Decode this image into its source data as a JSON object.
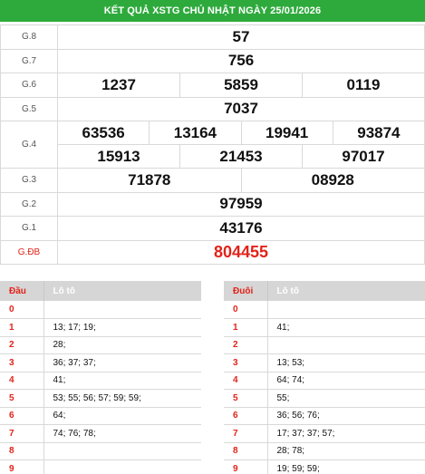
{
  "header": {
    "title": "KẾT QUẢ XSTG CHỦ NHẬT NGÀY 25/01/2026"
  },
  "prizes": {
    "g8": {
      "label": "G.8",
      "values": [
        "57"
      ]
    },
    "g7": {
      "label": "G.7",
      "values": [
        "756"
      ]
    },
    "g6": {
      "label": "G.6",
      "values": [
        "1237",
        "5859",
        "0119"
      ]
    },
    "g5": {
      "label": "G.5",
      "values": [
        "7037"
      ]
    },
    "g4": {
      "label": "G.4",
      "values": [
        "63536",
        "13164",
        "19941",
        "93874",
        "15913",
        "21453",
        "97017"
      ]
    },
    "g3": {
      "label": "G.3",
      "values": [
        "71878",
        "08928"
      ]
    },
    "g2": {
      "label": "G.2",
      "values": [
        "97959"
      ]
    },
    "g1": {
      "label": "G.1",
      "values": [
        "43176"
      ]
    },
    "gdb": {
      "label": "G.ĐB",
      "values": [
        "804455"
      ]
    }
  },
  "dau": {
    "col_head": "Đầu",
    "col_loto": "Lô tô",
    "rows": [
      {
        "n": "0",
        "v": ""
      },
      {
        "n": "1",
        "v": "13; 17; 19;"
      },
      {
        "n": "2",
        "v": "28;"
      },
      {
        "n": "3",
        "v": "36; 37; 37;"
      },
      {
        "n": "4",
        "v": "41;"
      },
      {
        "n": "5",
        "v": "53; 55; 56; 57; 59; 59;"
      },
      {
        "n": "6",
        "v": "64;"
      },
      {
        "n": "7",
        "v": "74; 76; 78;"
      },
      {
        "n": "8",
        "v": ""
      },
      {
        "n": "9",
        "v": ""
      }
    ]
  },
  "duoi": {
    "col_head": "Đuôi",
    "col_loto": "Lô tô",
    "rows": [
      {
        "n": "0",
        "v": ""
      },
      {
        "n": "1",
        "v": "41;"
      },
      {
        "n": "2",
        "v": ""
      },
      {
        "n": "3",
        "v": "13; 53;"
      },
      {
        "n": "4",
        "v": "64; 74;"
      },
      {
        "n": "5",
        "v": "55;"
      },
      {
        "n": "6",
        "v": "36; 56; 76;"
      },
      {
        "n": "7",
        "v": "17; 37; 37; 57;"
      },
      {
        "n": "8",
        "v": "28; 78;"
      },
      {
        "n": "9",
        "v": "19; 59; 59;"
      }
    ]
  }
}
